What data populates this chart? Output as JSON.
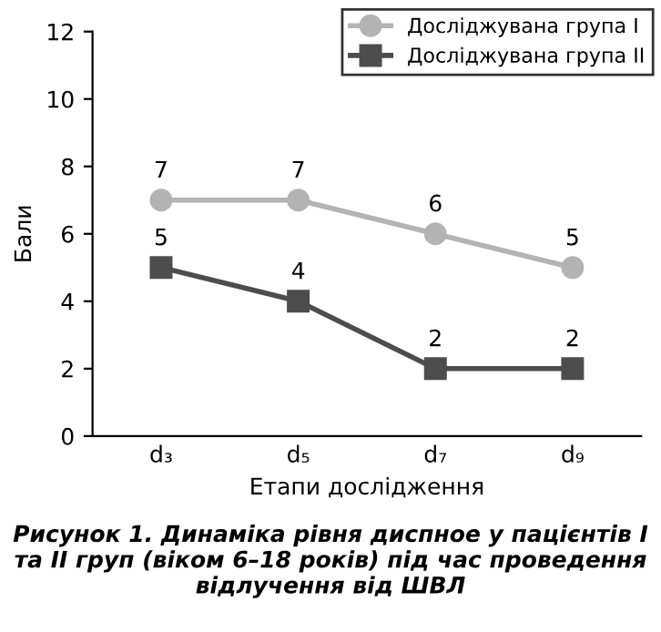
{
  "chart_data": {
    "type": "line",
    "categories": [
      "d₃",
      "d₅",
      "d₇",
      "d₉"
    ],
    "series": [
      {
        "name": "Досліджувана група I",
        "color": "#b3b3b3",
        "values": [
          7,
          7,
          6,
          5
        ],
        "marker": "circle"
      },
      {
        "name": "Досліджувана група II",
        "color": "#4d4d4d",
        "values": [
          5,
          4,
          2,
          2
        ],
        "marker": "square"
      }
    ],
    "ylim": [
      0,
      12
    ],
    "yticks": [
      0,
      2,
      4,
      6,
      8,
      10,
      12
    ],
    "ylabel": "Бали",
    "xlabel": "Етапи дослідження",
    "data_labels": true,
    "legend": "top right",
    "grid": false,
    "line_style": "solid",
    "annotations": [
      "Рисунок 1. Динаміка рівня диспное у пацієнтів I та II груп (віком 6–18 років) під час проведення відлучення від ШВЛ"
    ]
  }
}
